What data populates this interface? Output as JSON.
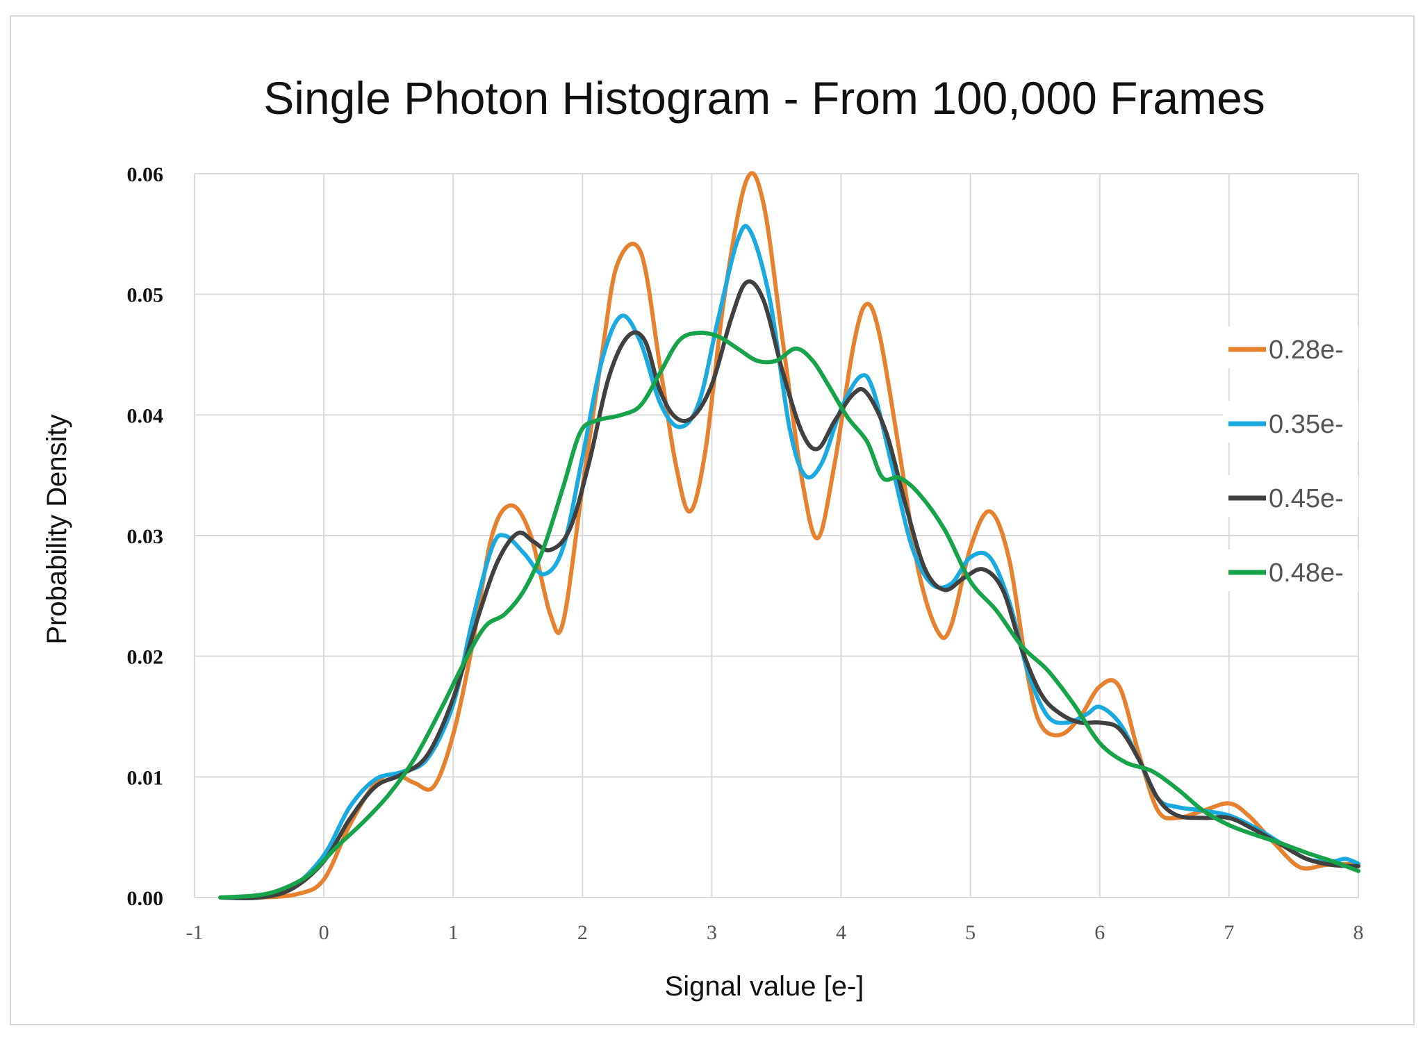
{
  "chart_data": {
    "type": "line",
    "title": "Single Photon Histogram - From 100,000 Frames",
    "xlabel": "Signal value [e-]",
    "ylabel": "Probability Density",
    "xlim": [
      -1,
      8
    ],
    "ylim": [
      0,
      0.06
    ],
    "x_ticks": [
      "-1",
      "0",
      "1",
      "2",
      "3",
      "4",
      "5",
      "6",
      "7",
      "8"
    ],
    "y_ticks": [
      "0.00",
      "0.01",
      "0.02",
      "0.03",
      "0.04",
      "0.05",
      "0.06"
    ],
    "grid": true,
    "legend_position": "right",
    "series": [
      {
        "name": "0.28e-",
        "color": "#E6812F",
        "points": [
          [
            -0.8,
            0
          ],
          [
            -0.5,
            0
          ],
          [
            -0.2,
            0.0003
          ],
          [
            0,
            0.0015
          ],
          [
            0.2,
            0.006
          ],
          [
            0.4,
            0.0095
          ],
          [
            0.55,
            0.0102
          ],
          [
            0.7,
            0.0095
          ],
          [
            0.85,
            0.0092
          ],
          [
            1.0,
            0.0135
          ],
          [
            1.15,
            0.021
          ],
          [
            1.3,
            0.03
          ],
          [
            1.45,
            0.0325
          ],
          [
            1.6,
            0.03
          ],
          [
            1.75,
            0.0235
          ],
          [
            1.85,
            0.0228
          ],
          [
            2.0,
            0.034
          ],
          [
            2.15,
            0.045
          ],
          [
            2.27,
            0.0525
          ],
          [
            2.45,
            0.0535
          ],
          [
            2.6,
            0.044
          ],
          [
            2.72,
            0.036
          ],
          [
            2.83,
            0.032
          ],
          [
            2.95,
            0.037
          ],
          [
            3.1,
            0.05
          ],
          [
            3.27,
            0.0595
          ],
          [
            3.4,
            0.0575
          ],
          [
            3.55,
            0.046
          ],
          [
            3.7,
            0.0345
          ],
          [
            3.82,
            0.0298
          ],
          [
            3.95,
            0.036
          ],
          [
            4.1,
            0.046
          ],
          [
            4.2,
            0.0492
          ],
          [
            4.3,
            0.0465
          ],
          [
            4.45,
            0.037
          ],
          [
            4.6,
            0.027
          ],
          [
            4.75,
            0.022
          ],
          [
            4.85,
            0.0225
          ],
          [
            5.0,
            0.029
          ],
          [
            5.15,
            0.032
          ],
          [
            5.3,
            0.028
          ],
          [
            5.45,
            0.018
          ],
          [
            5.55,
            0.0142
          ],
          [
            5.7,
            0.0135
          ],
          [
            5.85,
            0.015
          ],
          [
            6.0,
            0.0175
          ],
          [
            6.15,
            0.0175
          ],
          [
            6.3,
            0.012
          ],
          [
            6.45,
            0.0072
          ],
          [
            6.6,
            0.0066
          ],
          [
            6.8,
            0.0072
          ],
          [
            7.0,
            0.0078
          ],
          [
            7.15,
            0.0068
          ],
          [
            7.35,
            0.0045
          ],
          [
            7.55,
            0.0025
          ],
          [
            7.75,
            0.0027
          ],
          [
            8.0,
            0.0028
          ]
        ]
      },
      {
        "name": "0.35e-",
        "color": "#1AAAE0",
        "points": [
          [
            -0.8,
            0
          ],
          [
            -0.5,
            0
          ],
          [
            -0.25,
            0.0008
          ],
          [
            0,
            0.0035
          ],
          [
            0.2,
            0.0075
          ],
          [
            0.4,
            0.0098
          ],
          [
            0.6,
            0.0104
          ],
          [
            0.8,
            0.0115
          ],
          [
            1.0,
            0.016
          ],
          [
            1.15,
            0.023
          ],
          [
            1.3,
            0.029
          ],
          [
            1.4,
            0.03
          ],
          [
            1.55,
            0.0285
          ],
          [
            1.7,
            0.0268
          ],
          [
            1.85,
            0.029
          ],
          [
            2.0,
            0.0365
          ],
          [
            2.15,
            0.0445
          ],
          [
            2.3,
            0.0482
          ],
          [
            2.45,
            0.046
          ],
          [
            2.6,
            0.041
          ],
          [
            2.75,
            0.039
          ],
          [
            2.9,
            0.041
          ],
          [
            3.05,
            0.048
          ],
          [
            3.2,
            0.0545
          ],
          [
            3.3,
            0.0552
          ],
          [
            3.45,
            0.0495
          ],
          [
            3.6,
            0.039
          ],
          [
            3.72,
            0.035
          ],
          [
            3.85,
            0.036
          ],
          [
            4.0,
            0.0405
          ],
          [
            4.15,
            0.0432
          ],
          [
            4.25,
            0.042
          ],
          [
            4.4,
            0.0355
          ],
          [
            4.55,
            0.029
          ],
          [
            4.7,
            0.026
          ],
          [
            4.85,
            0.026
          ],
          [
            5.0,
            0.0282
          ],
          [
            5.15,
            0.0282
          ],
          [
            5.3,
            0.0245
          ],
          [
            5.45,
            0.0185
          ],
          [
            5.6,
            0.015
          ],
          [
            5.75,
            0.0145
          ],
          [
            5.9,
            0.0152
          ],
          [
            6.0,
            0.0158
          ],
          [
            6.15,
            0.0145
          ],
          [
            6.3,
            0.0115
          ],
          [
            6.45,
            0.0082
          ],
          [
            6.6,
            0.0075
          ],
          [
            6.8,
            0.0072
          ],
          [
            7.0,
            0.0068
          ],
          [
            7.2,
            0.0058
          ],
          [
            7.4,
            0.0045
          ],
          [
            7.6,
            0.0032
          ],
          [
            7.8,
            0.003
          ],
          [
            7.9,
            0.0032
          ],
          [
            8.0,
            0.0028
          ]
        ]
      },
      {
        "name": "0.45e-",
        "color": "#404040",
        "points": [
          [
            -0.8,
            0
          ],
          [
            -0.5,
            0
          ],
          [
            -0.25,
            0.0007
          ],
          [
            0,
            0.003
          ],
          [
            0.2,
            0.0065
          ],
          [
            0.4,
            0.0092
          ],
          [
            0.6,
            0.0102
          ],
          [
            0.8,
            0.0118
          ],
          [
            1.0,
            0.0165
          ],
          [
            1.2,
            0.0235
          ],
          [
            1.35,
            0.028
          ],
          [
            1.5,
            0.0302
          ],
          [
            1.62,
            0.0295
          ],
          [
            1.75,
            0.0288
          ],
          [
            1.9,
            0.0305
          ],
          [
            2.05,
            0.036
          ],
          [
            2.2,
            0.043
          ],
          [
            2.35,
            0.0465
          ],
          [
            2.48,
            0.0462
          ],
          [
            2.6,
            0.042
          ],
          [
            2.72,
            0.0398
          ],
          [
            2.85,
            0.0398
          ],
          [
            3.0,
            0.0425
          ],
          [
            3.15,
            0.048
          ],
          [
            3.27,
            0.051
          ],
          [
            3.4,
            0.0495
          ],
          [
            3.55,
            0.0435
          ],
          [
            3.7,
            0.0385
          ],
          [
            3.82,
            0.0372
          ],
          [
            3.95,
            0.0395
          ],
          [
            4.1,
            0.0418
          ],
          [
            4.2,
            0.0418
          ],
          [
            4.35,
            0.0385
          ],
          [
            4.5,
            0.0325
          ],
          [
            4.65,
            0.0272
          ],
          [
            4.8,
            0.0255
          ],
          [
            4.95,
            0.0265
          ],
          [
            5.1,
            0.0272
          ],
          [
            5.25,
            0.0255
          ],
          [
            5.4,
            0.0205
          ],
          [
            5.55,
            0.0168
          ],
          [
            5.7,
            0.0152
          ],
          [
            5.85,
            0.0145
          ],
          [
            6.0,
            0.0145
          ],
          [
            6.15,
            0.014
          ],
          [
            6.3,
            0.0115
          ],
          [
            6.45,
            0.0082
          ],
          [
            6.6,
            0.0068
          ],
          [
            6.8,
            0.0066
          ],
          [
            7.0,
            0.0066
          ],
          [
            7.2,
            0.0056
          ],
          [
            7.4,
            0.0044
          ],
          [
            7.6,
            0.0032
          ],
          [
            7.8,
            0.0027
          ],
          [
            8.0,
            0.0026
          ]
        ]
      },
      {
        "name": "0.48e-",
        "color": "#17A34A",
        "points": [
          [
            -0.8,
            0
          ],
          [
            -0.5,
            0.0002
          ],
          [
            -0.3,
            0.0008
          ],
          [
            -0.1,
            0.002
          ],
          [
            0.1,
            0.0042
          ],
          [
            0.3,
            0.0062
          ],
          [
            0.5,
            0.0085
          ],
          [
            0.7,
            0.0115
          ],
          [
            0.9,
            0.0155
          ],
          [
            1.1,
            0.0198
          ],
          [
            1.25,
            0.0225
          ],
          [
            1.4,
            0.0235
          ],
          [
            1.55,
            0.0255
          ],
          [
            1.7,
            0.029
          ],
          [
            1.85,
            0.034
          ],
          [
            1.98,
            0.0385
          ],
          [
            2.1,
            0.0395
          ],
          [
            2.3,
            0.04
          ],
          [
            2.45,
            0.0408
          ],
          [
            2.6,
            0.0435
          ],
          [
            2.75,
            0.0462
          ],
          [
            2.9,
            0.0468
          ],
          [
            3.05,
            0.0465
          ],
          [
            3.2,
            0.0455
          ],
          [
            3.35,
            0.0445
          ],
          [
            3.5,
            0.0445
          ],
          [
            3.65,
            0.0455
          ],
          [
            3.78,
            0.0445
          ],
          [
            3.9,
            0.0425
          ],
          [
            4.05,
            0.0398
          ],
          [
            4.2,
            0.0378
          ],
          [
            4.32,
            0.0348
          ],
          [
            4.45,
            0.0348
          ],
          [
            4.6,
            0.0335
          ],
          [
            4.8,
            0.0305
          ],
          [
            5.0,
            0.0262
          ],
          [
            5.2,
            0.0238
          ],
          [
            5.4,
            0.0208
          ],
          [
            5.6,
            0.0188
          ],
          [
            5.8,
            0.016
          ],
          [
            6.0,
            0.0128
          ],
          [
            6.2,
            0.0112
          ],
          [
            6.4,
            0.0105
          ],
          [
            6.6,
            0.009
          ],
          [
            6.8,
            0.0072
          ],
          [
            7.0,
            0.006
          ],
          [
            7.2,
            0.0052
          ],
          [
            7.4,
            0.0045
          ],
          [
            7.6,
            0.0037
          ],
          [
            7.8,
            0.003
          ],
          [
            8.0,
            0.0022
          ]
        ]
      }
    ]
  }
}
